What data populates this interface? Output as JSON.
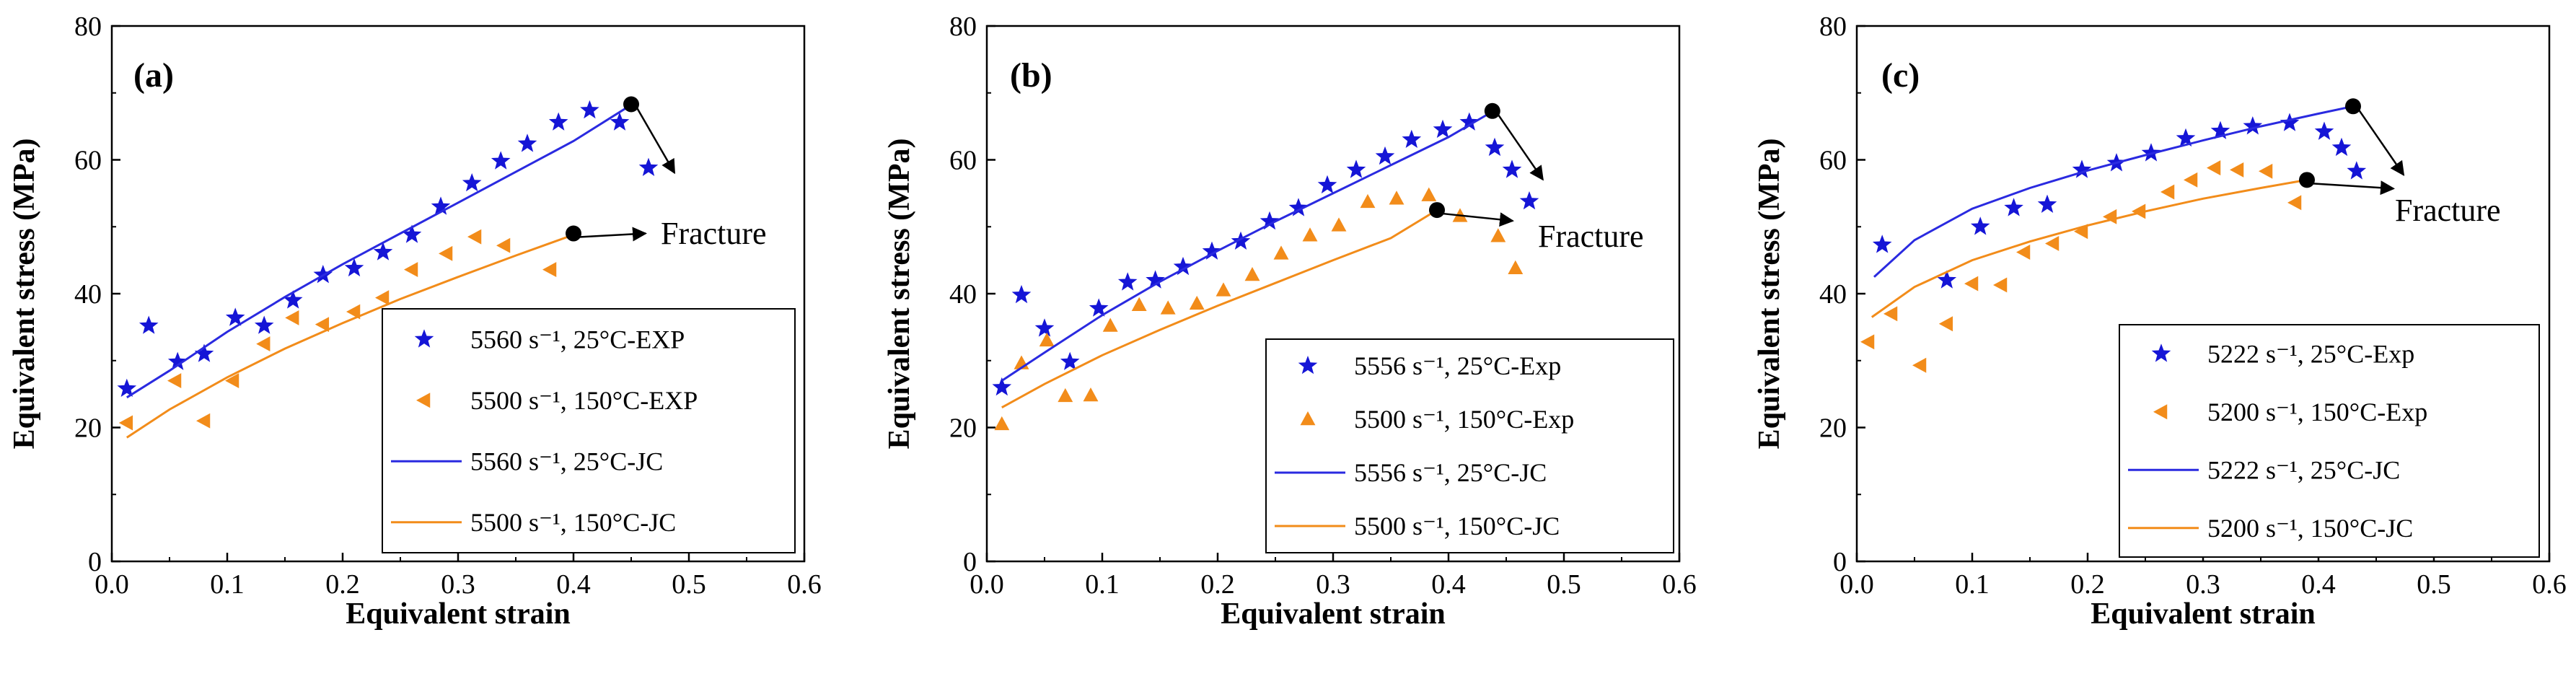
{
  "chart_data": [
    {
      "type": "scatter",
      "panel_label": "(a)",
      "xlabel": "Equivalent strain",
      "ylabel": "Equivalent stress (MPa)",
      "xlim": [
        0,
        0.6
      ],
      "ylim": [
        0,
        80
      ],
      "xticks": [
        "0.0",
        "0.1",
        "0.2",
        "0.3",
        "0.4",
        "0.5",
        "0.6"
      ],
      "yticks": [
        "0",
        "20",
        "40",
        "60",
        "80"
      ],
      "annotation": "Fracture",
      "legend": {
        "exp25": "5560 s⁻¹, 25°C-EXP",
        "exp150": "5500 s⁻¹, 150°C-EXP",
        "jc25": "5560 s⁻¹, 25°C-JC",
        "jc150": "5500 s⁻¹, 150°C-JC"
      },
      "series": [
        {
          "name": "exp25",
          "marker": "star",
          "color": "#1515d6",
          "points": [
            [
              0.013,
              25.8
            ],
            [
              0.032,
              35.2
            ],
            [
              0.057,
              29.8
            ],
            [
              0.08,
              31
            ],
            [
              0.107,
              36.4
            ],
            [
              0.132,
              35.2
            ],
            [
              0.157,
              39
            ],
            [
              0.183,
              42.8
            ],
            [
              0.21,
              43.8
            ],
            [
              0.235,
              46.2
            ],
            [
              0.26,
              48.8
            ],
            [
              0.285,
              53
            ],
            [
              0.312,
              56.5
            ],
            [
              0.337,
              59.8
            ],
            [
              0.36,
              62.4
            ],
            [
              0.387,
              65.6
            ],
            [
              0.414,
              67.4
            ],
            [
              0.44,
              65.6
            ],
            [
              0.465,
              58.8
            ]
          ]
        },
        {
          "name": "exp150",
          "marker": "triangle-left",
          "color": "#f28c1a",
          "points": [
            [
              0.013,
              20.7
            ],
            [
              0.055,
              27
            ],
            [
              0.08,
              21
            ],
            [
              0.105,
              27
            ],
            [
              0.132,
              32.5
            ],
            [
              0.157,
              36.4
            ],
            [
              0.183,
              35.4
            ],
            [
              0.21,
              37.3
            ],
            [
              0.235,
              39.4
            ],
            [
              0.26,
              43.6
            ],
            [
              0.29,
              46
            ],
            [
              0.315,
              48.5
            ],
            [
              0.34,
              47.2
            ],
            [
              0.38,
              43.6
            ]
          ]
        },
        {
          "name": "jc25",
          "type": "line",
          "color": "#2a2ae0",
          "points": [
            [
              0.013,
              24.5
            ],
            [
              0.05,
              28.5
            ],
            [
              0.1,
              34.3
            ],
            [
              0.15,
              39.5
            ],
            [
              0.2,
              44.4
            ],
            [
              0.25,
              49
            ],
            [
              0.3,
              53.6
            ],
            [
              0.35,
              58.2
            ],
            [
              0.4,
              62.8
            ],
            [
              0.448,
              68
            ]
          ]
        },
        {
          "name": "jc150",
          "type": "line",
          "color": "#f28c1a",
          "points": [
            [
              0.013,
              18.5
            ],
            [
              0.05,
              22.7
            ],
            [
              0.1,
              27.5
            ],
            [
              0.15,
              31.8
            ],
            [
              0.2,
              35.6
            ],
            [
              0.25,
              39.2
            ],
            [
              0.3,
              42.5
            ],
            [
              0.35,
              45.7
            ],
            [
              0.4,
              48.8
            ]
          ]
        }
      ],
      "fracture_points": [
        [
          0.45,
          68.3
        ],
        [
          0.4,
          49
        ]
      ]
    },
    {
      "type": "scatter",
      "panel_label": "(b)",
      "xlabel": "Equivalent strain",
      "ylabel": "Equivalent stress (MPa)",
      "xlim": [
        0,
        0.6
      ],
      "ylim": [
        0,
        80
      ],
      "xticks": [
        "0.0",
        "0.1",
        "0.2",
        "0.3",
        "0.4",
        "0.5",
        "0.6"
      ],
      "yticks": [
        "0",
        "20",
        "40",
        "60",
        "80"
      ],
      "annotation": "Fracture",
      "legend": {
        "exp25": "5556 s⁻¹, 25°C-Exp",
        "exp150": "5500 s⁻¹, 150°C-Exp",
        "jc25": "5556 s⁻¹, 25°C-JC",
        "jc150": "5500 s⁻¹, 150°C-JC"
      },
      "series": [
        {
          "name": "exp25",
          "marker": "star",
          "color": "#1515d6",
          "points": [
            [
              0.013,
              26
            ],
            [
              0.03,
              39.8
            ],
            [
              0.05,
              34.8
            ],
            [
              0.072,
              29.8
            ],
            [
              0.097,
              37.8
            ],
            [
              0.122,
              41.7
            ],
            [
              0.146,
              42
            ],
            [
              0.17,
              44
            ],
            [
              0.195,
              46.3
            ],
            [
              0.22,
              47.8
            ],
            [
              0.245,
              50.8
            ],
            [
              0.27,
              52.8
            ],
            [
              0.295,
              56.2
            ],
            [
              0.32,
              58.5
            ],
            [
              0.345,
              60.5
            ],
            [
              0.368,
              63
            ],
            [
              0.395,
              64.5
            ],
            [
              0.418,
              65.6
            ],
            [
              0.44,
              61.8
            ],
            [
              0.455,
              58.5
            ],
            [
              0.47,
              53.8
            ]
          ]
        },
        {
          "name": "exp150",
          "marker": "triangle-up",
          "color": "#f28c1a",
          "points": [
            [
              0.013,
              20.5
            ],
            [
              0.03,
              29.6
            ],
            [
              0.052,
              33
            ],
            [
              0.068,
              24.7
            ],
            [
              0.09,
              24.8
            ],
            [
              0.107,
              35.2
            ],
            [
              0.132,
              38.3
            ],
            [
              0.157,
              37.8
            ],
            [
              0.182,
              38.5
            ],
            [
              0.205,
              40.5
            ],
            [
              0.23,
              42.8
            ],
            [
              0.255,
              46
            ],
            [
              0.28,
              48.7
            ],
            [
              0.305,
              50.2
            ],
            [
              0.33,
              53.7
            ],
            [
              0.355,
              54.2
            ],
            [
              0.383,
              54.7
            ],
            [
              0.41,
              51.6
            ],
            [
              0.443,
              48.6
            ],
            [
              0.458,
              43.8
            ]
          ]
        },
        {
          "name": "jc25",
          "type": "line",
          "color": "#2a2ae0",
          "points": [
            [
              0.013,
              27
            ],
            [
              0.05,
              31.2
            ],
            [
              0.1,
              36.8
            ],
            [
              0.15,
              41.8
            ],
            [
              0.2,
              46.4
            ],
            [
              0.25,
              50.8
            ],
            [
              0.3,
              55
            ],
            [
              0.35,
              59.2
            ],
            [
              0.4,
              63.4
            ],
            [
              0.438,
              67.2
            ]
          ]
        },
        {
          "name": "jc150",
          "type": "line",
          "color": "#f28c1a",
          "points": [
            [
              0.013,
              23
            ],
            [
              0.05,
              26.5
            ],
            [
              0.1,
              30.8
            ],
            [
              0.15,
              34.6
            ],
            [
              0.2,
              38.2
            ],
            [
              0.25,
              41.6
            ],
            [
              0.3,
              45
            ],
            [
              0.35,
              48.3
            ],
            [
              0.39,
              52.5
            ]
          ]
        }
      ],
      "fracture_points": [
        [
          0.438,
          67.3
        ],
        [
          0.39,
          52.5
        ]
      ]
    },
    {
      "type": "scatter",
      "panel_label": "(c)",
      "xlabel": "Equivalent strain",
      "ylabel": "Equivalent stress (MPa)",
      "xlim": [
        0,
        0.6
      ],
      "ylim": [
        0,
        80
      ],
      "xticks": [
        "0.0",
        "0.1",
        "0.2",
        "0.3",
        "0.4",
        "0.5",
        "0.6"
      ],
      "yticks": [
        "0",
        "20",
        "40",
        "60",
        "80"
      ],
      "annotation": "Fracture",
      "legend": {
        "exp25": "5222 s⁻¹, 25°C-Exp",
        "exp150": "5200 s⁻¹, 150°C-Exp",
        "jc25": "5222 s⁻¹, 25°C-JC",
        "jc150": "5200 s⁻¹, 150°C-JC"
      },
      "series": [
        {
          "name": "exp25",
          "marker": "star",
          "color": "#1515d6",
          "points": [
            [
              0.022,
              47.3
            ],
            [
              0.078,
              42
            ],
            [
              0.107,
              50
            ],
            [
              0.136,
              52.8
            ],
            [
              0.165,
              53.3
            ],
            [
              0.195,
              58.5
            ],
            [
              0.225,
              59.5
            ],
            [
              0.255,
              61
            ],
            [
              0.285,
              63.2
            ],
            [
              0.315,
              64.3
            ],
            [
              0.343,
              65
            ],
            [
              0.375,
              65.5
            ],
            [
              0.405,
              64.2
            ],
            [
              0.42,
              61.8
            ],
            [
              0.433,
              58.3
            ]
          ]
        },
        {
          "name": "exp150",
          "marker": "triangle-left",
          "color": "#f28c1a",
          "points": [
            [
              0.01,
              32.8
            ],
            [
              0.03,
              37
            ],
            [
              0.055,
              29.3
            ],
            [
              0.078,
              35.5
            ],
            [
              0.1,
              41.5
            ],
            [
              0.125,
              41.3
            ],
            [
              0.145,
              46.2
            ],
            [
              0.17,
              47.5
            ],
            [
              0.195,
              49.3
            ],
            [
              0.22,
              51.5
            ],
            [
              0.245,
              52.3
            ],
            [
              0.27,
              55.2
            ],
            [
              0.29,
              57
            ],
            [
              0.31,
              58.8
            ],
            [
              0.33,
              58.5
            ],
            [
              0.355,
              58.3
            ],
            [
              0.38,
              53.6
            ]
          ]
        },
        {
          "name": "jc25",
          "type": "line",
          "color": "#2a2ae0",
          "points": [
            [
              0.015,
              42.5
            ],
            [
              0.05,
              48
            ],
            [
              0.1,
              52.7
            ],
            [
              0.15,
              55.8
            ],
            [
              0.2,
              58.4
            ],
            [
              0.25,
              60.7
            ],
            [
              0.3,
              62.9
            ],
            [
              0.35,
              65
            ],
            [
              0.4,
              66.9
            ],
            [
              0.43,
              68
            ]
          ]
        },
        {
          "name": "jc150",
          "type": "line",
          "color": "#f28c1a",
          "points": [
            [
              0.013,
              36.5
            ],
            [
              0.05,
              41
            ],
            [
              0.1,
              45
            ],
            [
              0.15,
              47.8
            ],
            [
              0.2,
              50.2
            ],
            [
              0.25,
              52.3
            ],
            [
              0.3,
              54.2
            ],
            [
              0.35,
              55.8
            ],
            [
              0.39,
              57
            ]
          ]
        }
      ],
      "fracture_points": [
        [
          0.43,
          68
        ],
        [
          0.39,
          57
        ]
      ]
    }
  ]
}
